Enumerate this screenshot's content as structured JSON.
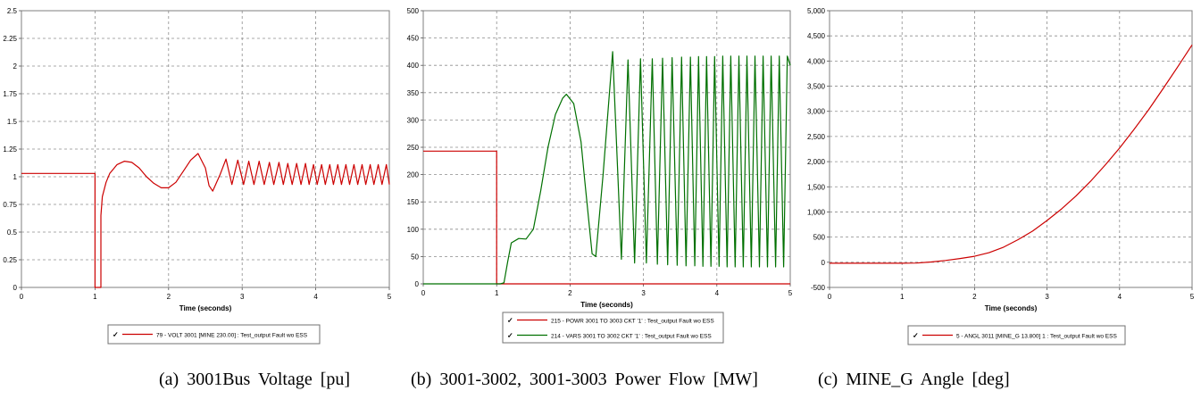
{
  "panels": [
    {
      "caption": "(a) 3001Bus Voltage [pu]",
      "xlabel": "Time (seconds)",
      "legend": [
        {
          "text": "79 - VOLT 3001 [MINE       230.00] : Test_output Fault wo ESS",
          "color": "#cc0000"
        }
      ]
    },
    {
      "caption": "(b) 3001-3002, 3001-3003 Power Flow [MW]",
      "xlabel": "Time (seconds)",
      "legend": [
        {
          "text": "215 - POWR 3001 TO 3003 CKT '1' : Test_output Fault wo ESS",
          "color": "#cc0000"
        },
        {
          "text": "214 - VARS 3001 TO 3002 CKT '1' : Test_output Fault wo ESS",
          "color": "#007000"
        }
      ]
    },
    {
      "caption": "(c) MINE_G Angle [deg]",
      "xlabel": "Time (seconds)",
      "legend": [
        {
          "text": "5 - ANGL 3011 [MINE_G      13.800] 1 : Test_output Fault wo ESS",
          "color": "#cc0000"
        }
      ]
    }
  ],
  "chart_data": [
    {
      "type": "line",
      "title": "",
      "xlabel": "Time (seconds)",
      "ylabel": "",
      "xlim": [
        0,
        5
      ],
      "ylim": [
        0,
        2.5
      ],
      "xticks": [
        "0",
        "1",
        "2",
        "3",
        "4",
        "5"
      ],
      "yticks": [
        "0",
        "0.25",
        "0.5",
        "0.75",
        "1",
        "1.25",
        "1.5",
        "1.75",
        "2",
        "2.25",
        "2.5"
      ],
      "grid": true,
      "legend_position": "bottom",
      "series": [
        {
          "name": "79 - VOLT 3001 [MINE       230.00] : Test_output Fault wo ESS",
          "color": "#cc0000",
          "x": [
            0,
            1.0,
            1.0,
            1.08,
            1.08,
            1.1,
            1.15,
            1.2,
            1.3,
            1.4,
            1.5,
            1.6,
            1.7,
            1.8,
            1.9,
            2.0,
            2.1,
            2.2,
            2.3,
            2.4,
            2.5,
            2.55,
            2.6,
            2.7,
            2.78,
            2.86,
            2.94,
            3.02,
            3.09,
            3.16,
            3.23,
            3.3,
            3.37,
            3.43,
            3.5,
            3.56,
            3.62,
            3.68,
            3.74,
            3.8,
            3.86,
            3.91,
            3.97,
            4.02,
            4.08,
            4.13,
            4.19,
            4.24,
            4.3,
            4.35,
            4.41,
            4.46,
            4.52,
            4.57,
            4.63,
            4.68,
            4.74,
            4.79,
            4.85,
            4.9,
            4.96,
            5.0
          ],
          "y": [
            1.03,
            1.03,
            0,
            0,
            0.65,
            0.82,
            0.95,
            1.03,
            1.11,
            1.14,
            1.13,
            1.08,
            1.0,
            0.94,
            0.9,
            0.9,
            0.95,
            1.05,
            1.15,
            1.21,
            1.08,
            0.92,
            0.87,
            1.02,
            1.16,
            0.93,
            1.15,
            0.93,
            1.14,
            0.93,
            1.14,
            0.93,
            1.13,
            0.93,
            1.13,
            0.93,
            1.12,
            0.93,
            1.12,
            0.93,
            1.12,
            0.93,
            1.11,
            0.93,
            1.11,
            0.93,
            1.11,
            0.93,
            1.11,
            0.93,
            1.11,
            0.93,
            1.11,
            0.93,
            1.11,
            0.93,
            1.11,
            0.93,
            1.11,
            0.93,
            1.11,
            0.93
          ]
        }
      ]
    },
    {
      "type": "line",
      "title": "",
      "xlabel": "Time (seconds)",
      "ylabel": "",
      "xlim": [
        0,
        5
      ],
      "ylim": [
        0,
        500
      ],
      "xticks": [
        "0",
        "1",
        "2",
        "3",
        "4",
        "5"
      ],
      "yticks": [
        "0",
        "50",
        "100",
        "150",
        "200",
        "250",
        "300",
        "350",
        "400",
        "450",
        "500"
      ],
      "grid": true,
      "legend_position": "bottom",
      "series": [
        {
          "name": "215 - POWR 3001 TO 3003 CKT '1' : Test_output Fault wo ESS",
          "color": "#cc0000",
          "x": [
            0,
            1.0,
            1.0,
            5.0
          ],
          "y": [
            243,
            243,
            0,
            0
          ]
        },
        {
          "name": "214 - VARS 3001 TO 3002 CKT '1' : Test_output Fault wo ESS",
          "color": "#007000",
          "x": [
            0,
            1.05,
            1.1,
            1.15,
            1.2,
            1.3,
            1.4,
            1.5,
            1.6,
            1.7,
            1.8,
            1.9,
            1.95,
            2.05,
            2.15,
            2.2,
            2.3,
            2.35,
            2.45,
            2.58,
            2.7,
            2.79,
            2.88,
            2.96,
            3.04,
            3.12,
            3.19,
            3.26,
            3.33,
            3.39,
            3.46,
            3.52,
            3.58,
            3.64,
            3.7,
            3.75,
            3.81,
            3.86,
            3.92,
            3.97,
            4.03,
            4.08,
            4.14,
            4.19,
            4.25,
            4.3,
            4.36,
            4.41,
            4.47,
            4.52,
            4.58,
            4.63,
            4.69,
            4.74,
            4.8,
            4.85,
            4.91,
            4.96,
            5.0
          ],
          "y": [
            0,
            0,
            2,
            40,
            75,
            83,
            82,
            100,
            170,
            250,
            310,
            340,
            347,
            330,
            260,
            190,
            55,
            50,
            200,
            425,
            45,
            410,
            38,
            412,
            38,
            412,
            36,
            413,
            35,
            414,
            34,
            415,
            33,
            415,
            33,
            416,
            32,
            416,
            32,
            416,
            32,
            417,
            31,
            417,
            31,
            417,
            31,
            417,
            31,
            417,
            31,
            417,
            31,
            417,
            31,
            417,
            31,
            417,
            400
          ]
        }
      ]
    },
    {
      "type": "line",
      "title": "",
      "xlabel": "Time (seconds)",
      "ylabel": "",
      "xlim": [
        0,
        5
      ],
      "ylim": [
        -500,
        5000
      ],
      "xticks": [
        "0",
        "1",
        "2",
        "3",
        "4",
        "5"
      ],
      "yticks": [
        "-500",
        "0",
        "500",
        "1,000",
        "1,500",
        "2,000",
        "2,500",
        "3,000",
        "3,500",
        "4,000",
        "4,500",
        "5,000"
      ],
      "grid": true,
      "legend_position": "bottom",
      "series": [
        {
          "name": "5 - ANGL 3011 [MINE_G      13.800] 1 : Test_output Fault wo ESS",
          "color": "#cc0000",
          "x": [
            0,
            1.0,
            1.2,
            1.4,
            1.6,
            1.8,
            2.0,
            2.2,
            2.4,
            2.6,
            2.8,
            3.0,
            3.2,
            3.4,
            3.6,
            3.8,
            4.0,
            4.2,
            4.4,
            4.6,
            4.8,
            5.0
          ],
          "y": [
            -20,
            -20,
            -15,
            5,
            35,
            75,
            120,
            190,
            300,
            450,
            620,
            830,
            1060,
            1320,
            1610,
            1930,
            2270,
            2640,
            3030,
            3450,
            3880,
            4320
          ]
        }
      ]
    }
  ]
}
